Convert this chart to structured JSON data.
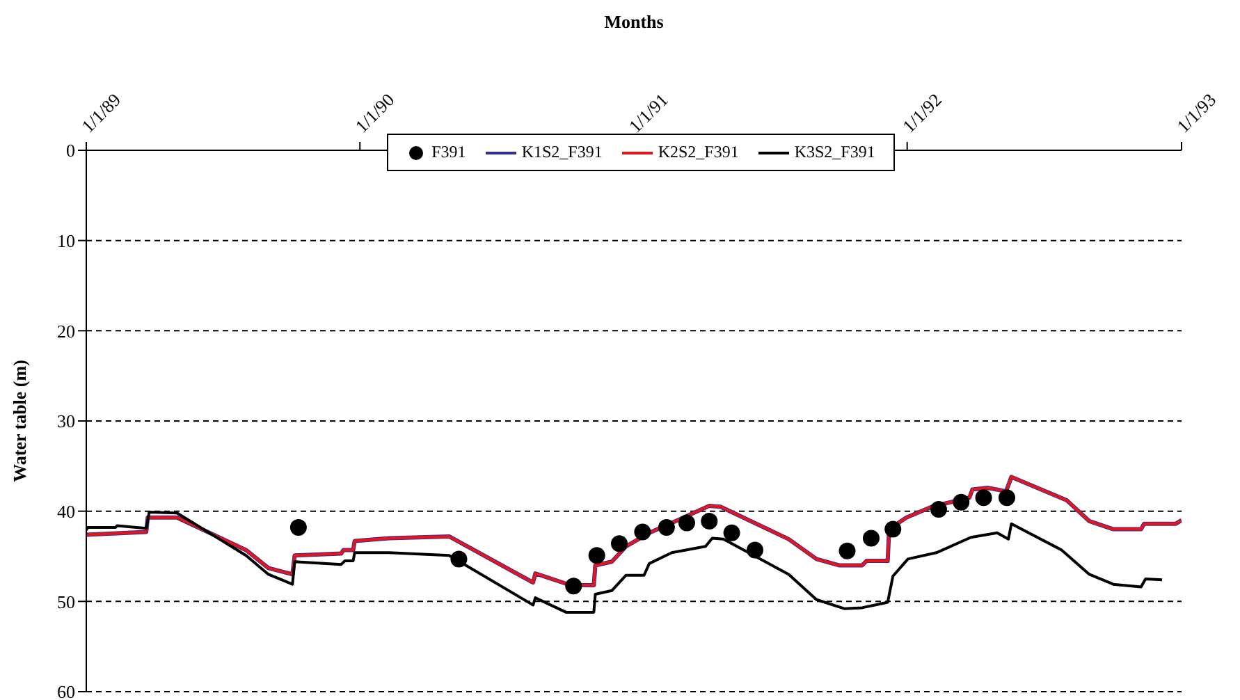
{
  "chart_data": {
    "type": "line",
    "xlabel": "Months",
    "ylabel": "Water table (m)",
    "xlim": [
      "1989-01-01",
      "1993-01-01"
    ],
    "xticks": [
      {
        "value": "1989-01-01",
        "label": "1/1/89"
      },
      {
        "value": "1990-01-01",
        "label": "1/1/90"
      },
      {
        "value": "1991-01-01",
        "label": "1/1/91"
      },
      {
        "value": "1992-01-01",
        "label": "1/1/92"
      },
      {
        "value": "1993-01-01",
        "label": "1/1/93"
      }
    ],
    "ylim": [
      60,
      0
    ],
    "yticks": [
      0,
      10,
      20,
      30,
      40,
      50,
      60
    ],
    "grid": "y",
    "legend": "top",
    "line_style": "solid",
    "series": [
      {
        "name": "F391",
        "type": "scatter",
        "marker": "circle",
        "color": "#000000",
        "x": [
          "1989-10-11",
          "1990-05-13",
          "1990-10-13",
          "1990-11-13",
          "1990-12-13",
          "1991-01-13",
          "1991-02-14",
          "1991-03-13",
          "1991-04-12",
          "1991-05-12",
          "1991-06-12",
          "1991-10-13",
          "1991-11-14",
          "1991-12-13",
          "1992-02-12",
          "1992-03-13",
          "1992-04-12",
          "1992-05-13"
        ],
        "values": [
          41.8,
          45.3,
          48.3,
          44.9,
          43.6,
          42.3,
          41.8,
          41.3,
          41.1,
          42.4,
          44.3,
          44.4,
          43.0,
          42.0,
          39.8,
          39.0,
          38.5,
          38.5
        ]
      },
      {
        "name": "K1S2_F391",
        "color": "#2e3192",
        "x": [
          "1989-01-01",
          "1989-03-22",
          "1989-03-24",
          "1989-05-02",
          "1989-08-02",
          "1989-09-01",
          "1989-10-03",
          "1989-10-06",
          "1989-12-07",
          "1989-12-10",
          "1989-12-23",
          "1989-12-25",
          "1990-02-09",
          "1990-04-30",
          "1990-08-20",
          "1990-08-23",
          "1990-10-09",
          "1990-11-09",
          "1990-11-11",
          "1990-12-03",
          "1990-12-22",
          "1991-01-22",
          "1991-02-21",
          "1991-04-12",
          "1991-04-27",
          "1991-07-27",
          "1991-09-02",
          "1991-10-02",
          "1991-11-02",
          "1991-11-08",
          "1991-12-06",
          "1991-12-08",
          "1991-12-31",
          "1992-02-03",
          "1992-03-24",
          "1992-03-28",
          "1992-04-17",
          "1992-05-12",
          "1992-05-19",
          "1992-08-01",
          "1992-08-31",
          "1992-10-02",
          "1992-11-08",
          "1992-11-12",
          "1992-12-24",
          "1993-01-01"
        ],
        "values": [
          42.6,
          42.3,
          40.7,
          40.7,
          44.3,
          46.3,
          47.0,
          44.9,
          44.7,
          44.3,
          44.3,
          43.3,
          43.0,
          42.8,
          47.9,
          46.9,
          48.2,
          48.2,
          46.0,
          45.6,
          43.9,
          42.4,
          41.3,
          39.4,
          39.5,
          43.1,
          45.3,
          46.0,
          46.0,
          45.5,
          45.5,
          42.0,
          40.7,
          39.5,
          38.5,
          37.6,
          37.4,
          37.8,
          36.2,
          38.8,
          41.1,
          42.0,
          42.0,
          41.4,
          41.4,
          41.0
        ]
      },
      {
        "name": "K2S2_F391",
        "color": "#e8141b",
        "x": [
          "1989-01-01",
          "1989-03-22",
          "1989-03-24",
          "1989-05-02",
          "1989-08-02",
          "1989-09-01",
          "1989-10-03",
          "1989-10-06",
          "1989-12-07",
          "1989-12-10",
          "1989-12-23",
          "1989-12-25",
          "1990-02-09",
          "1990-04-30",
          "1990-08-20",
          "1990-08-23",
          "1990-10-09",
          "1990-11-09",
          "1990-11-11",
          "1990-12-03",
          "1990-12-22",
          "1991-01-22",
          "1991-02-21",
          "1991-04-12",
          "1991-04-27",
          "1991-07-27",
          "1991-09-02",
          "1991-10-02",
          "1991-11-02",
          "1991-11-08",
          "1991-12-06",
          "1991-12-08",
          "1991-12-31",
          "1992-02-03",
          "1992-03-24",
          "1992-03-28",
          "1992-04-17",
          "1992-05-12",
          "1992-05-19",
          "1992-08-01",
          "1992-08-31",
          "1992-10-02",
          "1992-11-08",
          "1992-11-12",
          "1992-12-24",
          "1993-01-01"
        ],
        "values": [
          42.6,
          42.3,
          40.7,
          40.7,
          44.3,
          46.3,
          47.0,
          44.9,
          44.7,
          44.3,
          44.3,
          43.3,
          43.0,
          42.8,
          47.9,
          46.9,
          48.2,
          48.2,
          46.0,
          45.6,
          43.9,
          42.4,
          41.3,
          39.4,
          39.5,
          43.1,
          45.3,
          46.0,
          46.0,
          45.5,
          45.5,
          42.0,
          40.7,
          39.5,
          38.5,
          37.6,
          37.4,
          37.8,
          36.2,
          38.8,
          41.1,
          42.0,
          42.0,
          41.4,
          41.4,
          41.0
        ]
      },
      {
        "name": "K3S2_F391",
        "color": "#000000",
        "x": [
          "1989-01-01",
          "1989-01-03",
          "1989-02-09",
          "1989-02-11",
          "1989-03-22",
          "1989-03-26",
          "1989-05-02",
          "1989-08-02",
          "1989-09-01",
          "1989-10-03",
          "1989-10-06",
          "1989-12-07",
          "1989-12-12",
          "1989-12-23",
          "1989-12-25",
          "1990-02-09",
          "1990-04-30",
          "1990-08-20",
          "1990-08-23",
          "1990-10-03",
          "1990-11-09",
          "1990-11-11",
          "1990-12-03",
          "1990-12-22",
          "1991-01-15",
          "1991-01-22",
          "1991-02-21",
          "1991-04-07",
          "1991-04-16",
          "1991-05-01",
          "1991-07-27",
          "1991-09-02",
          "1991-10-09",
          "1991-11-02",
          "1991-12-06",
          "1991-12-13",
          "1992-01-02",
          "1992-02-09",
          "1992-03-26",
          "1992-04-30",
          "1992-05-15",
          "1992-05-19",
          "1992-07-25",
          "1992-08-31",
          "1992-10-02",
          "1992-11-08",
          "1992-11-14",
          "1992-12-06"
        ],
        "values": [
          42.1,
          41.8,
          41.8,
          41.6,
          41.9,
          40.1,
          40.2,
          44.9,
          47.0,
          48.1,
          45.6,
          45.9,
          45.5,
          45.5,
          44.6,
          44.6,
          44.9,
          50.4,
          49.6,
          51.2,
          51.2,
          49.2,
          48.8,
          47.1,
          47.1,
          45.8,
          44.6,
          43.9,
          43.0,
          43.1,
          47.0,
          49.8,
          50.8,
          50.7,
          50.1,
          47.2,
          45.3,
          44.6,
          42.9,
          42.4,
          43.1,
          41.4,
          44.3,
          47.0,
          48.1,
          48.4,
          47.5,
          47.6
        ]
      }
    ]
  }
}
